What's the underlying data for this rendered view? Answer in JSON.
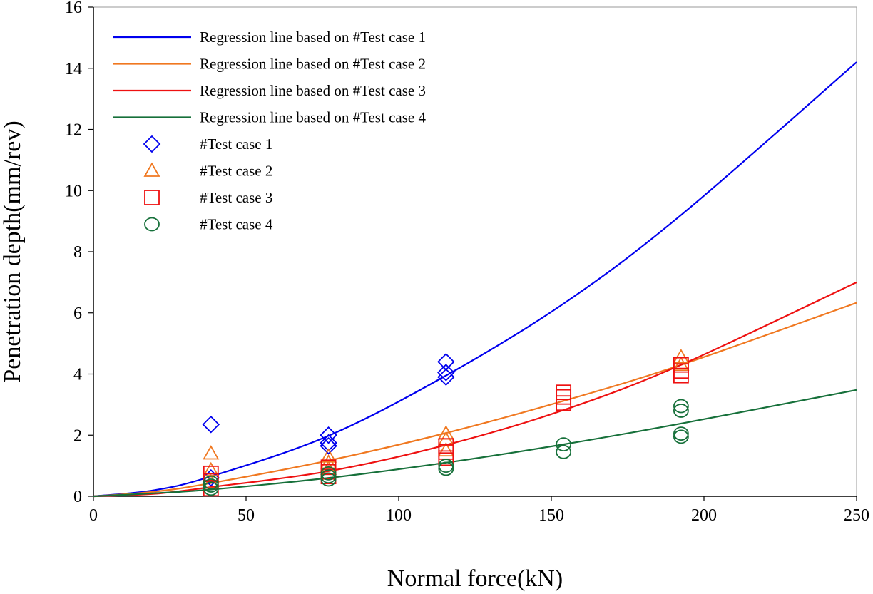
{
  "chart_data": {
    "type": "scatter",
    "title": "",
    "xlabel": "Normal force(kN)",
    "ylabel": "Penetration depth(mm/rev)",
    "xlim": [
      0,
      250
    ],
    "ylim": [
      0,
      16
    ],
    "xticks": [
      "0",
      "50",
      "100",
      "150",
      "200",
      "250"
    ],
    "yticks": [
      "0",
      "2",
      "4",
      "6",
      "8",
      "10",
      "12",
      "14",
      "16"
    ],
    "grid": false,
    "legend_position": "top-left",
    "regression_lines": [
      {
        "name": "Regression line based on #Test case 1",
        "color": "#0000ee",
        "x": [
          0,
          20,
          38.5,
          77,
          115.5,
          154,
          192.5,
          250
        ],
        "y": [
          0,
          0.2,
          0.65,
          1.98,
          3.95,
          6.3,
          9.2,
          14.2
        ]
      },
      {
        "name": "Regression line based on #Test case 2",
        "color": "#f07820",
        "x": [
          0,
          20,
          38.5,
          77,
          115.5,
          154,
          192.5,
          250
        ],
        "y": [
          0,
          0.15,
          0.43,
          1.17,
          2.07,
          3.12,
          4.3,
          6.33
        ]
      },
      {
        "name": "Regression line based on #Test case 3",
        "color": "#ee1111",
        "x": [
          0,
          20,
          38.5,
          77,
          115.5,
          154,
          192.5,
          250
        ],
        "y": [
          0,
          0.08,
          0.3,
          0.82,
          1.68,
          2.82,
          4.3,
          7.0
        ]
      },
      {
        "name": "Regression line based on #Test case 4",
        "color": "#16703a",
        "x": [
          0,
          20,
          38.5,
          77,
          115.5,
          154,
          192.5,
          250
        ],
        "y": [
          0,
          0.1,
          0.22,
          0.6,
          1.1,
          1.7,
          2.38,
          3.48
        ]
      }
    ],
    "series": [
      {
        "name": "#Test case 1",
        "marker": "diamond",
        "color": "#0000ee",
        "x": [
          38.5,
          38.5,
          77,
          77,
          77,
          115.5,
          115.5,
          115.5
        ],
        "y": [
          2.35,
          0.6,
          2.0,
          1.75,
          1.65,
          4.4,
          4.05,
          3.9
        ]
      },
      {
        "name": "#Test case 2",
        "marker": "triangle",
        "color": "#f07820",
        "x": [
          38.5,
          38.5,
          38.5,
          77,
          77,
          77,
          115.5,
          115.5,
          115.5,
          192.5,
          192.5
        ],
        "y": [
          1.4,
          0.85,
          0.45,
          1.3,
          1.1,
          0.9,
          2.05,
          1.85,
          1.5,
          4.55,
          4.3
        ]
      },
      {
        "name": "#Test case 3",
        "marker": "square",
        "color": "#ee1111",
        "x": [
          38.5,
          38.5,
          38.5,
          77,
          77,
          77,
          115.5,
          115.5,
          115.5,
          154,
          154,
          154,
          192.5,
          192.5,
          192.5
        ],
        "y": [
          0.75,
          0.5,
          0.25,
          0.95,
          0.8,
          0.65,
          1.65,
          1.45,
          1.25,
          3.4,
          3.25,
          3.05,
          4.3,
          4.1,
          3.95
        ]
      },
      {
        "name": "#Test case 4",
        "marker": "circle",
        "color": "#16703a",
        "x": [
          38.5,
          38.5,
          38.5,
          77,
          77,
          77,
          115.5,
          115.5,
          154,
          154,
          192.5,
          192.5,
          192.5,
          192.5
        ],
        "y": [
          0.45,
          0.35,
          0.25,
          0.75,
          0.65,
          0.55,
          1.0,
          0.9,
          1.7,
          1.45,
          2.95,
          2.8,
          2.05,
          1.95
        ]
      }
    ]
  }
}
